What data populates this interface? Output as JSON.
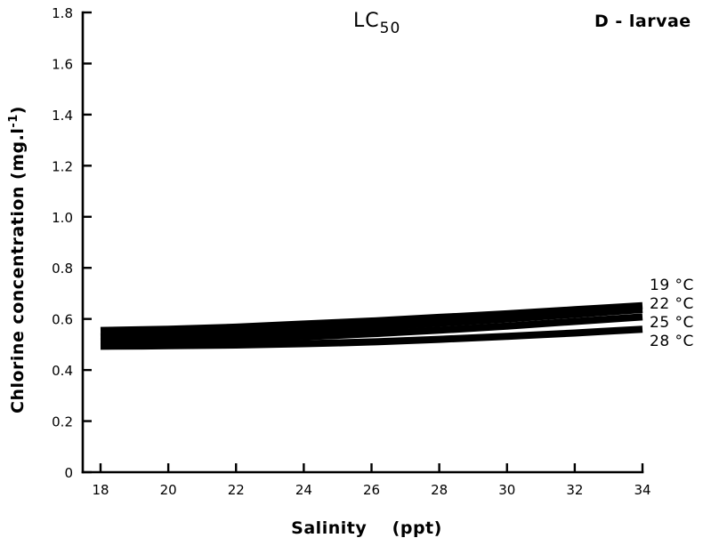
{
  "chart_data": {
    "type": "line",
    "title": "LC",
    "title_subscript": "50",
    "corner_label": "D - larvae",
    "xlabel": "Salinity    (ppt)",
    "ylabel": "Chlorine concentration (mg.l",
    "ylabel_superscript": "-1",
    "ylabel_close": ")",
    "xlim": [
      18,
      34
    ],
    "ylim": [
      0,
      1.8
    ],
    "x_ticks": [
      18,
      20,
      22,
      24,
      26,
      28,
      30,
      32,
      34
    ],
    "x_tick_labels": [
      "18",
      "20",
      "22",
      "24",
      "26",
      "28",
      "30",
      "32",
      "34"
    ],
    "y_ticks": [
      0,
      0.2,
      0.4,
      0.6,
      0.8,
      1.0,
      1.2,
      1.4,
      1.6,
      1.8
    ],
    "y_tick_labels": [
      "0",
      "0.2",
      "0.4",
      "0.6",
      "0.8",
      "1.0",
      "1.2",
      "1.4",
      "1.6",
      "1.8"
    ],
    "grid": false,
    "x": [
      18,
      20,
      22,
      24,
      26,
      28,
      30,
      32,
      34
    ],
    "series": [
      {
        "name": "19 °C",
        "values": [
          0.555,
          0.56,
          0.568,
          0.58,
          0.592,
          0.606,
          0.62,
          0.636,
          0.652
        ]
      },
      {
        "name": "22 °C",
        "values": [
          0.53,
          0.535,
          0.543,
          0.555,
          0.568,
          0.583,
          0.6,
          0.618,
          0.637
        ]
      },
      {
        "name": "25 °C",
        "values": [
          0.512,
          0.515,
          0.52,
          0.53,
          0.542,
          0.556,
          0.572,
          0.59,
          0.608
        ]
      },
      {
        "name": "28 °C",
        "values": [
          0.493,
          0.495,
          0.498,
          0.503,
          0.51,
          0.52,
          0.532,
          0.545,
          0.56
        ]
      }
    ]
  }
}
